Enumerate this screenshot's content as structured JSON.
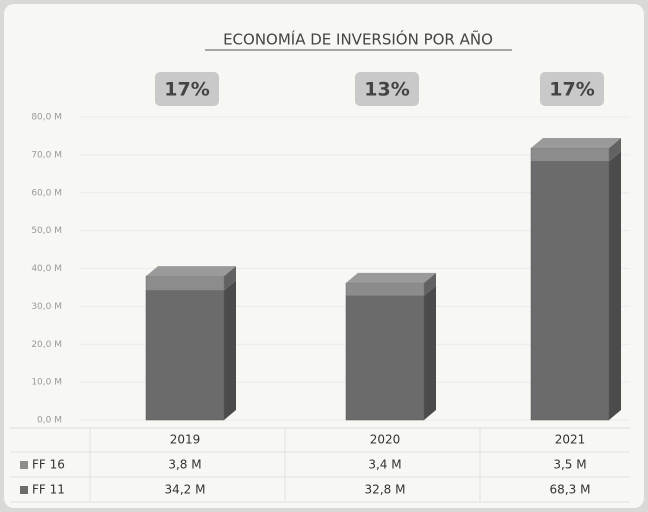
{
  "chart_data": {
    "type": "bar",
    "stacked": true,
    "title": "ECONOMÍA DE INVERSIÓN POR AÑO",
    "categories": [
      "2019",
      "2020",
      "2021"
    ],
    "series": [
      {
        "name": "FF 16",
        "color": "#8c8c8c",
        "values": [
          3.8,
          3.4,
          3.5
        ],
        "value_labels": [
          "3,8 M",
          "3,4 M",
          "3,5 M"
        ]
      },
      {
        "name": "FF 11",
        "color": "#6b6b6b",
        "values": [
          34.2,
          32.8,
          68.3
        ],
        "value_labels": [
          "34,2 M",
          "32,8 M",
          "68,3 M"
        ]
      }
    ],
    "annotations": [
      "17%",
      "13%",
      "17%"
    ],
    "ylim": [
      0,
      80
    ],
    "yticks": [
      {
        "value": 0,
        "label": "0,0 M"
      },
      {
        "value": 10,
        "label": "10,0 M"
      },
      {
        "value": 20,
        "label": "20,0 M"
      },
      {
        "value": 30,
        "label": "30,0 M"
      },
      {
        "value": 40,
        "label": "40,0 M"
      },
      {
        "value": 50,
        "label": "50,0 M"
      },
      {
        "value": 60,
        "label": "60,0 M"
      },
      {
        "value": 70,
        "label": "70,0 M"
      },
      {
        "value": 80,
        "label": "80,0 M"
      }
    ],
    "grid": true
  }
}
